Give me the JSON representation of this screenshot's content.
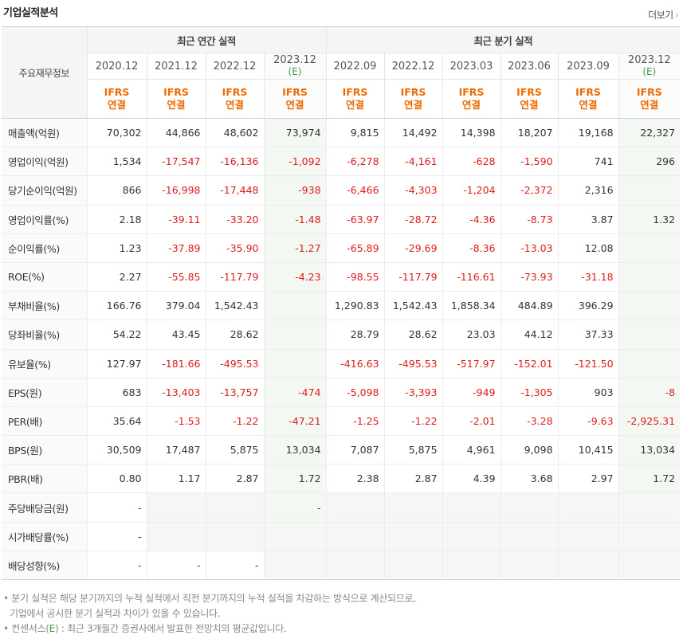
{
  "title": "기업실적분석",
  "more_label": "더보기",
  "more_chevron": "›",
  "row_header_label": "주요재무정보",
  "group_annual": "최근 연간 실적",
  "group_quarter": "최근 분기 실적",
  "periods": [
    {
      "date": "2020.12",
      "est": ""
    },
    {
      "date": "2021.12",
      "est": ""
    },
    {
      "date": "2022.12",
      "est": ""
    },
    {
      "date": "2023.12",
      "est": "(E)"
    },
    {
      "date": "2022.09",
      "est": ""
    },
    {
      "date": "2022.12",
      "est": ""
    },
    {
      "date": "2023.03",
      "est": ""
    },
    {
      "date": "2023.06",
      "est": ""
    },
    {
      "date": "2023.09",
      "est": ""
    },
    {
      "date": "2023.12",
      "est": "(E)"
    }
  ],
  "ifrs_top": "IFRS",
  "ifrs_bottom": "연결",
  "rows": [
    {
      "label": "매출액(억원)",
      "values": [
        "70,302",
        "44,866",
        "48,602",
        "73,974",
        "9,815",
        "14,492",
        "14,398",
        "18,207",
        "19,168",
        "22,327"
      ]
    },
    {
      "label": "영업이익(억원)",
      "values": [
        "1,534",
        "-17,547",
        "-16,136",
        "-1,092",
        "-6,278",
        "-4,161",
        "-628",
        "-1,590",
        "741",
        "296"
      ]
    },
    {
      "label": "당기순이익(억원)",
      "values": [
        "866",
        "-16,998",
        "-17,448",
        "-938",
        "-6,466",
        "-4,303",
        "-1,204",
        "-2,372",
        "2,316",
        ""
      ]
    },
    {
      "label": "영업이익률(%)",
      "values": [
        "2.18",
        "-39.11",
        "-33.20",
        "-1.48",
        "-63.97",
        "-28.72",
        "-4.36",
        "-8.73",
        "3.87",
        "1.32"
      ]
    },
    {
      "label": "순이익률(%)",
      "values": [
        "1.23",
        "-37.89",
        "-35.90",
        "-1.27",
        "-65.89",
        "-29.69",
        "-8.36",
        "-13.03",
        "12.08",
        ""
      ]
    },
    {
      "label": "ROE(%)",
      "values": [
        "2.27",
        "-55.85",
        "-117.79",
        "-4.23",
        "-98.55",
        "-117.79",
        "-116.61",
        "-73.93",
        "-31.18",
        ""
      ]
    },
    {
      "label": "부채비율(%)",
      "values": [
        "166.76",
        "379.04",
        "1,542.43",
        "",
        "1,290.83",
        "1,542.43",
        "1,858.34",
        "484.89",
        "396.29",
        ""
      ]
    },
    {
      "label": "당좌비율(%)",
      "values": [
        "54.22",
        "43.45",
        "28.62",
        "",
        "28.79",
        "28.62",
        "23.03",
        "44.12",
        "37.33",
        ""
      ]
    },
    {
      "label": "유보율(%)",
      "values": [
        "127.97",
        "-181.66",
        "-495.53",
        "",
        "-416.63",
        "-495.53",
        "-517.97",
        "-152.01",
        "-121.50",
        ""
      ]
    },
    {
      "label": "EPS(원)",
      "values": [
        "683",
        "-13,403",
        "-13,757",
        "-474",
        "-5,098",
        "-3,393",
        "-949",
        "-1,305",
        "903",
        "-8"
      ]
    },
    {
      "label": "PER(배)",
      "values": [
        "35.64",
        "-1.53",
        "-1.22",
        "-47.21",
        "-1.25",
        "-1.22",
        "-2.01",
        "-3.28",
        "-9.63",
        "-2,925.31"
      ]
    },
    {
      "label": "BPS(원)",
      "values": [
        "30,509",
        "17,487",
        "5,875",
        "13,034",
        "7,087",
        "5,875",
        "4,961",
        "9,098",
        "10,415",
        "13,034"
      ]
    },
    {
      "label": "PBR(배)",
      "values": [
        "0.80",
        "1.17",
        "2.87",
        "1.72",
        "2.38",
        "2.87",
        "4.39",
        "3.68",
        "2.97",
        "1.72"
      ]
    },
    {
      "label": "주당배당금(원)",
      "values": [
        "-",
        "",
        "",
        "-",
        "",
        "",
        "",
        "",
        "",
        ""
      ]
    },
    {
      "label": "시가배당률(%)",
      "values": [
        "-",
        "",
        "",
        "",
        "",
        "",
        "",
        "",
        "",
        ""
      ]
    },
    {
      "label": "배당성향(%)",
      "values": [
        "-",
        "-",
        "-",
        "",
        "",
        "",
        "",
        "",
        "",
        ""
      ]
    }
  ],
  "notes": {
    "line1": "• 분기 실적은 해당 분기까지의 누적 실적에서 직전 분기까지의 누적 실적을 차감하는 방식으로 계산되므로,",
    "line2": "기업에서 공시한 분기 실적과 차이가 있을 수 있습니다.",
    "line3_prefix": "• 컨센서스(",
    "line3_e": "E",
    "line3_suffix": ") : 최근 3개월간 증권사에서 발표한 전망치의 평균값입니다."
  }
}
